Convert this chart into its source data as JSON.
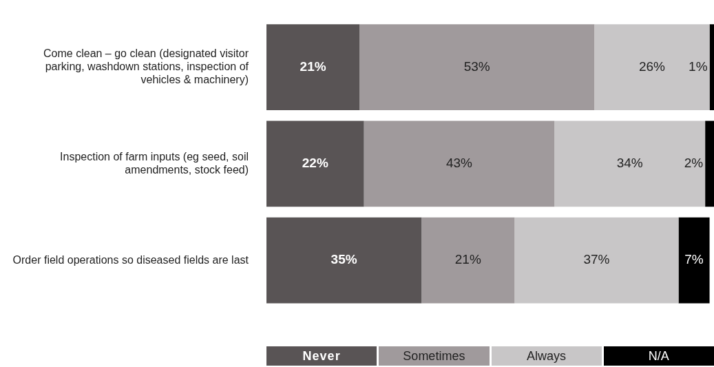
{
  "chart_data": {
    "type": "bar",
    "orientation": "horizontal",
    "stacked": true,
    "legend": "bottom",
    "tick_labels": "y",
    "categories": [
      "Come clean – go clean (designated visitor parking, washdown stations, inspection of vehicles & machinery)",
      "Inspection of farm inputs (eg seed, soil amendments, stock feed)",
      "Order field operations so diseased fields are last"
    ],
    "series": [
      {
        "name": "Never",
        "color": "#595455",
        "values": [
          21,
          22,
          35
        ],
        "value_labels": [
          "21%",
          "22%",
          "35%"
        ]
      },
      {
        "name": "Sometimes",
        "color": "#a09a9c",
        "values": [
          53,
          43,
          21
        ],
        "value_labels": [
          "53%",
          "43%",
          "21%"
        ]
      },
      {
        "name": "Always",
        "color": "#c8c6c7",
        "values": [
          26,
          34,
          37
        ],
        "value_labels": [
          "26%",
          "34%",
          "37%"
        ]
      },
      {
        "name": "N/A",
        "color": "#000000",
        "values": [
          1,
          2,
          7
        ],
        "value_labels": [
          "1%",
          "2%",
          "7%"
        ]
      }
    ]
  }
}
